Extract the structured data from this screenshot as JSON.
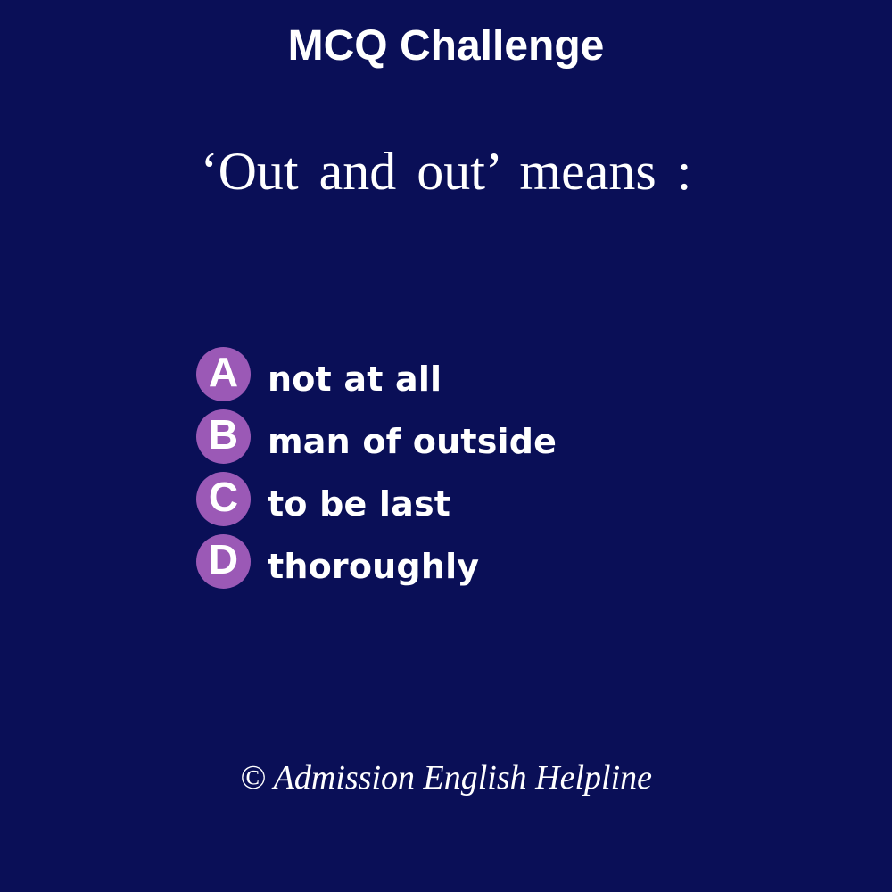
{
  "header": {
    "title": "MCQ Challenge"
  },
  "question": {
    "text": "‘Out and out’ means :"
  },
  "options": [
    {
      "letter": "A",
      "text": "not at all"
    },
    {
      "letter": "B",
      "text": "man of outside"
    },
    {
      "letter": "C",
      "text": "to be last"
    },
    {
      "letter": "D",
      "text": "thoroughly"
    }
  ],
  "footer": {
    "copyright": "© Admission English Helpline"
  },
  "colors": {
    "background": "#0a0f57",
    "badge": "#9b59b6",
    "text": "#ffffff"
  }
}
